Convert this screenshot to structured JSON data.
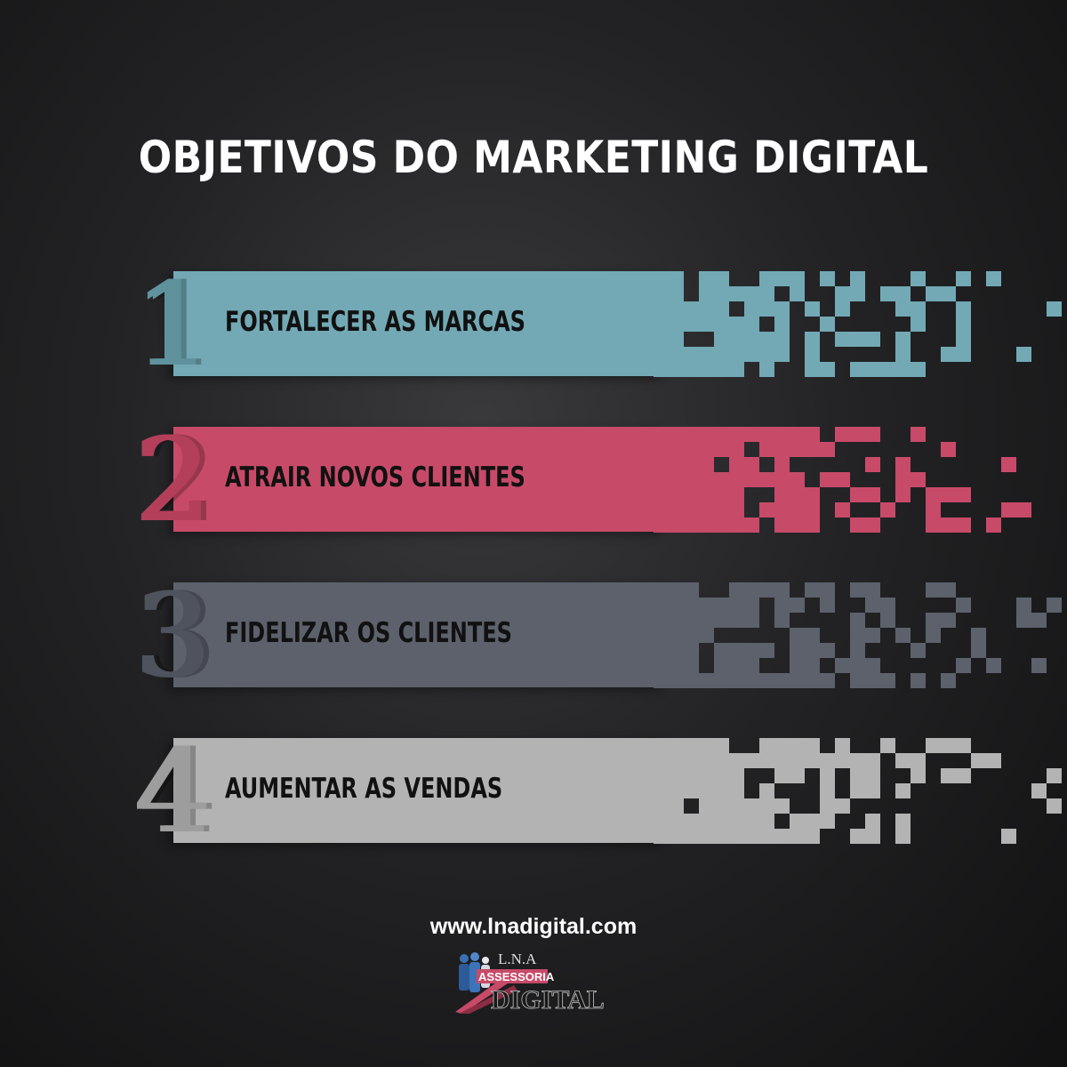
{
  "title": "OBJETIVOS DO MARKETING DIGITAL",
  "items": [
    {
      "number": "1",
      "label": "FORTALECER AS MARCAS",
      "color": "#72a9b5",
      "num_color": "#5f929d"
    },
    {
      "number": "2",
      "label": "ATRAIR NOVOS CLIENTES",
      "color": "#c84a69",
      "num_color": "#b43f5b"
    },
    {
      "number": "3",
      "label": "FIDELIZAR OS CLIENTES",
      "color": "#5c616c",
      "num_color": "#4e535d"
    },
    {
      "number": "4",
      "label": "AUMENTAR AS VENDAS",
      "color": "#b3b3b3",
      "num_color": "#9d9d9d"
    }
  ],
  "website": "www.lnadigital.com",
  "logo": {
    "line1": "L.N.A",
    "line2": "ASSESSORIA",
    "line3": "DIGITAL"
  }
}
